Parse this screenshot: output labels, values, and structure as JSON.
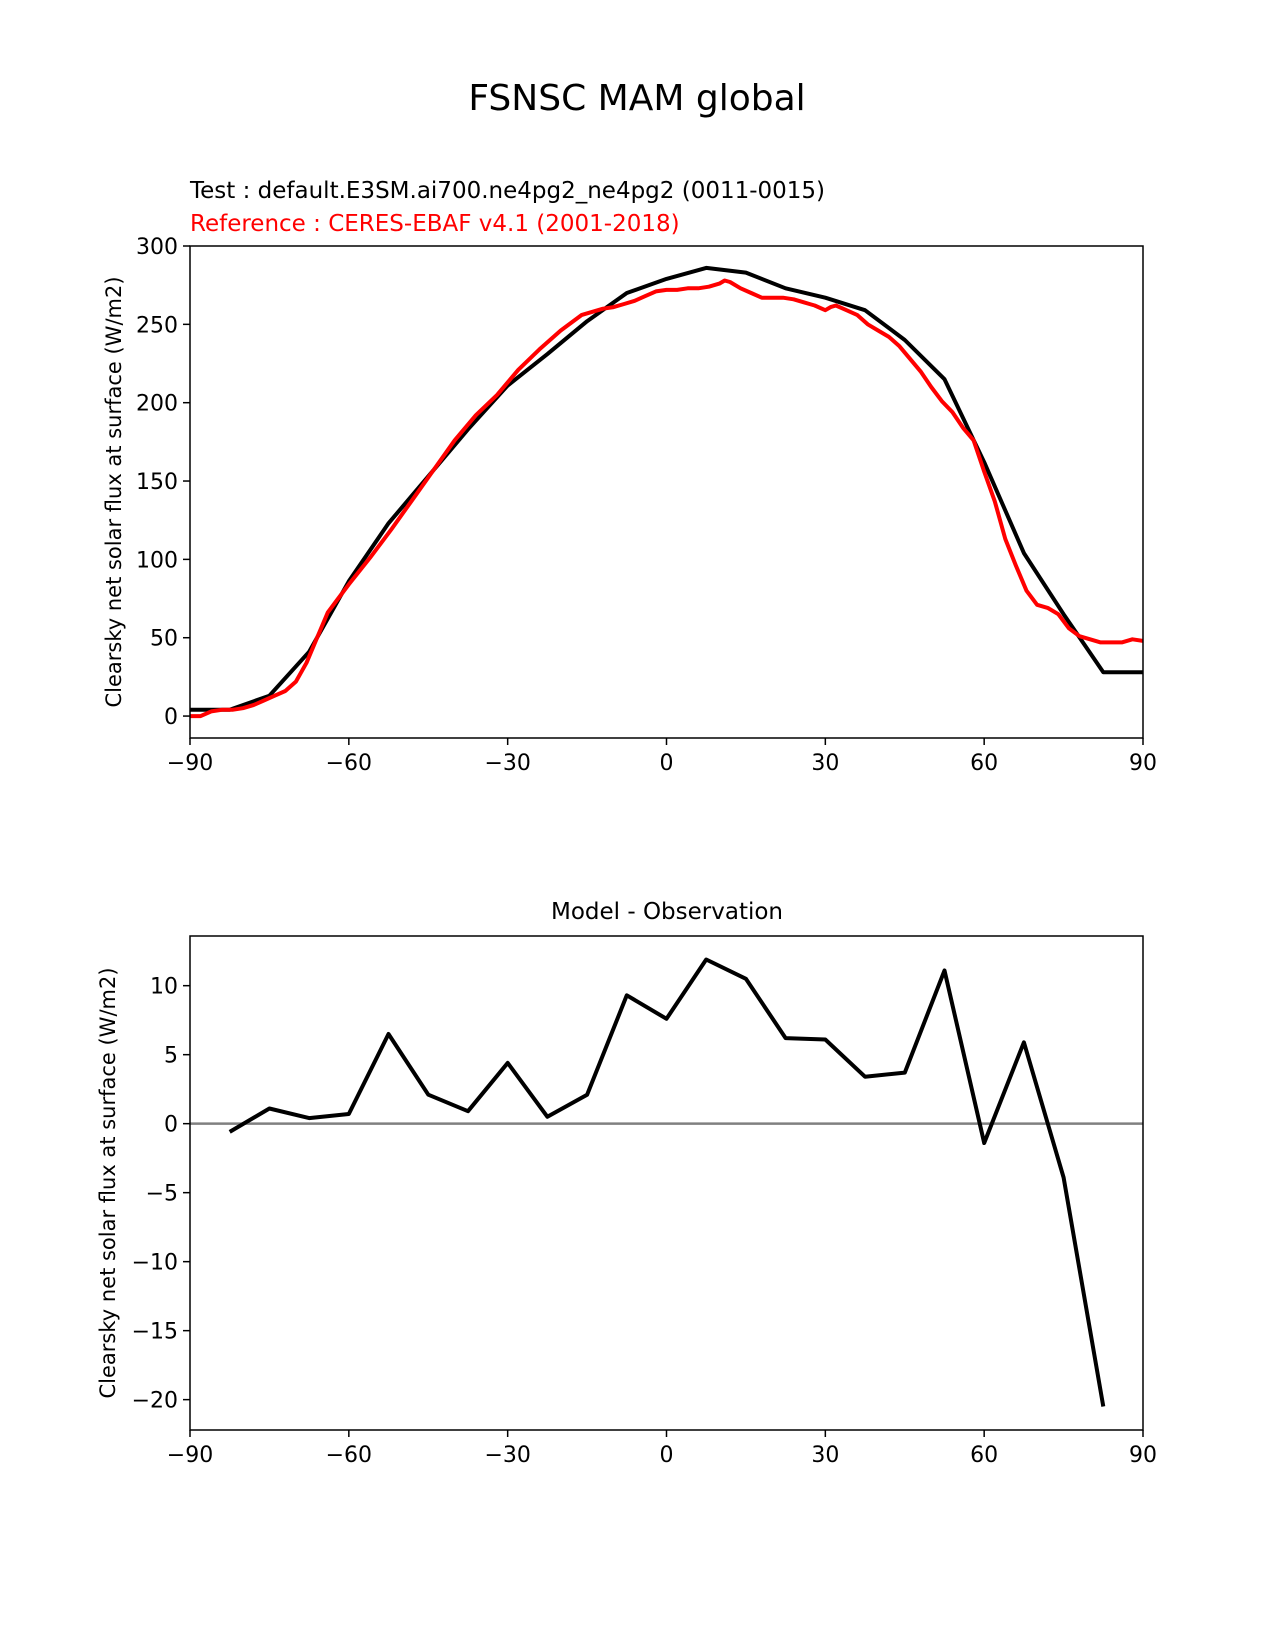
{
  "figure": {
    "title": "FSNSC MAM global"
  },
  "chart_data": [
    {
      "type": "line",
      "title": "",
      "test_label": "Test : default.E3SM.ai700.ne4pg2_ne4pg2 (0011-0015)",
      "reference_label": "Reference : CERES-EBAF v4.1 (2001-2018)",
      "xlabel": "",
      "ylabel": "Clearsky net solar flux at surface (W/m2)",
      "xlim": [
        -90,
        90
      ],
      "ylim": [
        -14,
        300
      ],
      "xticks": [
        -90,
        -60,
        -30,
        0,
        30,
        60,
        90
      ],
      "xtick_labels": [
        "−90",
        "−60",
        "−30",
        "0",
        "30",
        "60",
        "90"
      ],
      "yticks": [
        0,
        50,
        100,
        150,
        200,
        250,
        300
      ],
      "ytick_labels": [
        "0",
        "50",
        "100",
        "150",
        "200",
        "250",
        "300"
      ],
      "series": [
        {
          "color": "#000000",
          "x": [
            -90,
            -82.5,
            -75,
            -67.5,
            -60,
            -52.5,
            -45,
            -37.5,
            -30,
            -22.5,
            -15,
            -7.5,
            0,
            7.5,
            15,
            22.5,
            30,
            37.5,
            45,
            52.5,
            60,
            67.5,
            75,
            82.5,
            90
          ],
          "y": [
            4,
            4,
            13,
            41,
            86,
            123,
            153,
            183,
            211,
            231,
            252,
            270,
            279,
            286,
            283,
            273,
            267,
            259,
            240,
            215,
            162,
            104,
            65,
            28,
            28
          ]
        },
        {
          "color": "#ff0000",
          "x": [
            -90,
            -88,
            -86,
            -84,
            -82,
            -80,
            -78,
            -76,
            -74,
            -72,
            -70,
            -68,
            -66,
            -64,
            -62,
            -60,
            -56,
            -52,
            -48,
            -44,
            -40,
            -36,
            -32,
            -28,
            -24,
            -20,
            -16,
            -12,
            -10,
            -8,
            -6,
            -4,
            -2,
            0,
            2,
            4,
            6,
            8,
            10,
            11,
            12,
            14,
            16,
            18,
            20,
            22,
            24,
            26,
            27,
            28,
            30,
            31,
            32,
            34,
            36,
            38,
            40,
            42,
            44,
            46,
            48,
            50,
            52,
            54,
            56,
            58,
            60,
            62,
            64,
            66,
            68,
            70,
            72,
            74,
            76,
            78,
            80,
            82,
            84,
            86,
            88,
            90
          ],
          "y": [
            0,
            0,
            3,
            4,
            4,
            5,
            7,
            10,
            13,
            16,
            22,
            34,
            50,
            66,
            75,
            84,
            101,
            119,
            138,
            157,
            176,
            192,
            205,
            221,
            234,
            246,
            256,
            260,
            261,
            263,
            265,
            268,
            271,
            272,
            272,
            273,
            273,
            274,
            276,
            278,
            277,
            273,
            270,
            267,
            267,
            267,
            266,
            264,
            263,
            262,
            259,
            261,
            262,
            259,
            256,
            250,
            246,
            242,
            236,
            228,
            220,
            210,
            201,
            194,
            184,
            176,
            156,
            137,
            113,
            96,
            80,
            71,
            69,
            65,
            56,
            51,
            49,
            47,
            47,
            47,
            49,
            48
          ]
        }
      ]
    },
    {
      "type": "line",
      "title": "Model - Observation",
      "xlabel": "",
      "ylabel": "Clearsky net solar flux at surface (W/m2)",
      "xlim": [
        -90,
        90
      ],
      "ylim": [
        -22.2,
        13.6
      ],
      "xticks": [
        -90,
        -60,
        -30,
        0,
        30,
        60,
        90
      ],
      "xtick_labels": [
        "−90",
        "−60",
        "−30",
        "0",
        "30",
        "60",
        "90"
      ],
      "yticks": [
        -20,
        -15,
        -10,
        -5,
        0,
        5,
        10
      ],
      "ytick_labels": [
        "−20",
        "−15",
        "−10",
        "−5",
        "0",
        "5",
        "10"
      ],
      "zero_line_color": "#808080",
      "series": [
        {
          "color": "#000000",
          "x": [
            -82.5,
            -75,
            -67.5,
            -60,
            -52.5,
            -45,
            -37.5,
            -30,
            -22.5,
            -15,
            -7.5,
            0,
            7.5,
            15,
            22.5,
            30,
            37.5,
            45,
            52.5,
            60,
            67.5,
            75,
            82.5
          ],
          "y": [
            -0.6,
            1.1,
            0.4,
            0.7,
            6.5,
            2.1,
            0.9,
            4.4,
            0.5,
            2.1,
            9.3,
            7.6,
            11.9,
            10.5,
            6.2,
            6.1,
            3.4,
            3.7,
            11.1,
            -1.4,
            5.9,
            -3.9,
            -20.5
          ]
        }
      ]
    }
  ]
}
